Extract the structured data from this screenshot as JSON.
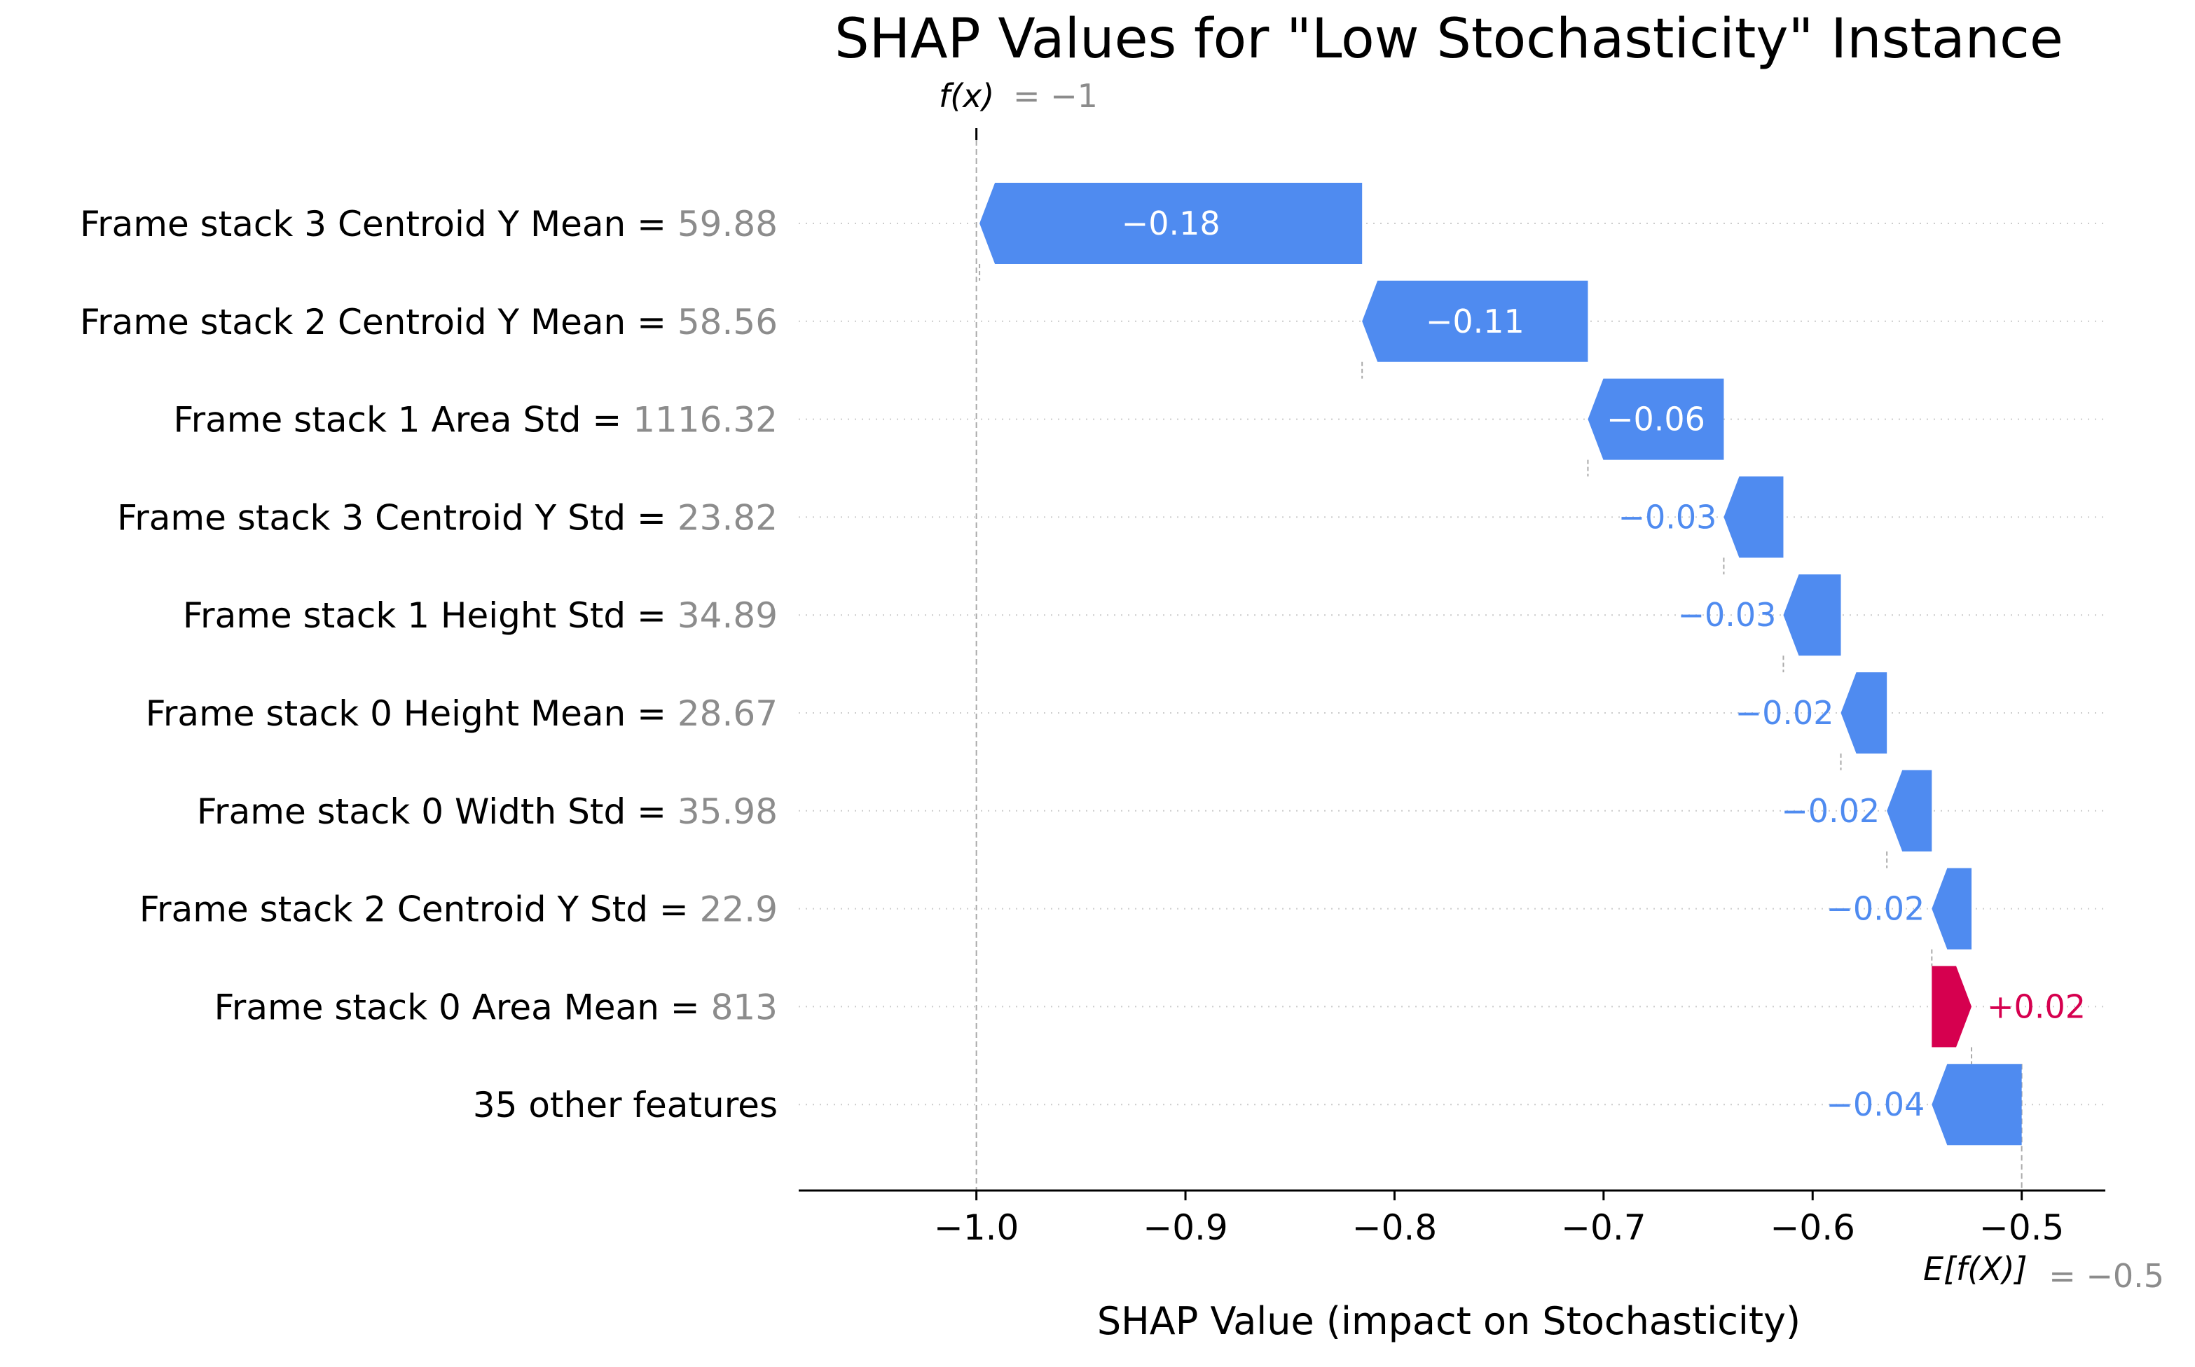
{
  "chart_data": {
    "type": "waterfall",
    "title": "SHAP Values for \"Low Stochasticity\" Instance",
    "xlabel": "SHAP Value (impact on Stochasticity)",
    "xlim": [
      -1.085,
      -0.46
    ],
    "xticks": [
      -1.0,
      -0.9,
      -0.8,
      -0.7,
      -0.6,
      -0.5
    ],
    "xtick_labels": [
      "−1.0",
      "−0.9",
      "−0.8",
      "−0.7",
      "−0.6",
      "−0.5"
    ],
    "fx_label": "f(x)",
    "fx_value_label": "= −1",
    "fx_value": -1.0,
    "efx_label": "E[f(X)]",
    "efx_value_label": "= −0.5",
    "efx_value": -0.5,
    "grid": "horizontal dotted",
    "colors": {
      "negative": "#4f8bf0",
      "positive": "#d6004f",
      "text": "#000000",
      "value_gray": "#8c8c8c"
    },
    "features": [
      {
        "name": "Frame stack 3 Centroid Y Mean",
        "value": "59.88",
        "start": -0.8155,
        "end": -0.9985,
        "label": "−0.18"
      },
      {
        "name": "Frame stack 2 Centroid Y Mean",
        "value": "58.56",
        "start": -0.7075,
        "end": -0.8155,
        "label": "−0.11"
      },
      {
        "name": "Frame stack 1 Area Std",
        "value": "1116.32",
        "start": -0.6425,
        "end": -0.7075,
        "label": "−0.06"
      },
      {
        "name": "Frame stack 3 Centroid Y Std",
        "value": "23.82",
        "start": -0.614,
        "end": -0.6425,
        "label": "−0.03"
      },
      {
        "name": "Frame stack 1 Height Std",
        "value": "34.89",
        "start": -0.5865,
        "end": -0.614,
        "label": "−0.03"
      },
      {
        "name": "Frame stack 0 Height Mean",
        "value": "28.67",
        "start": -0.5645,
        "end": -0.5865,
        "label": "−0.02"
      },
      {
        "name": "Frame stack 0 Width Std",
        "value": "35.98",
        "start": -0.543,
        "end": -0.5645,
        "label": "−0.02"
      },
      {
        "name": "Frame stack 2 Centroid Y Std",
        "value": "22.9",
        "start": -0.524,
        "end": -0.543,
        "label": "−0.02"
      },
      {
        "name": "Frame stack 0 Area Mean",
        "value": "813",
        "start": -0.543,
        "end": -0.524,
        "label": "+0.02"
      },
      {
        "name": "35 other features",
        "value": "",
        "start": -0.5,
        "end": -0.543,
        "label": "−0.04"
      }
    ]
  }
}
